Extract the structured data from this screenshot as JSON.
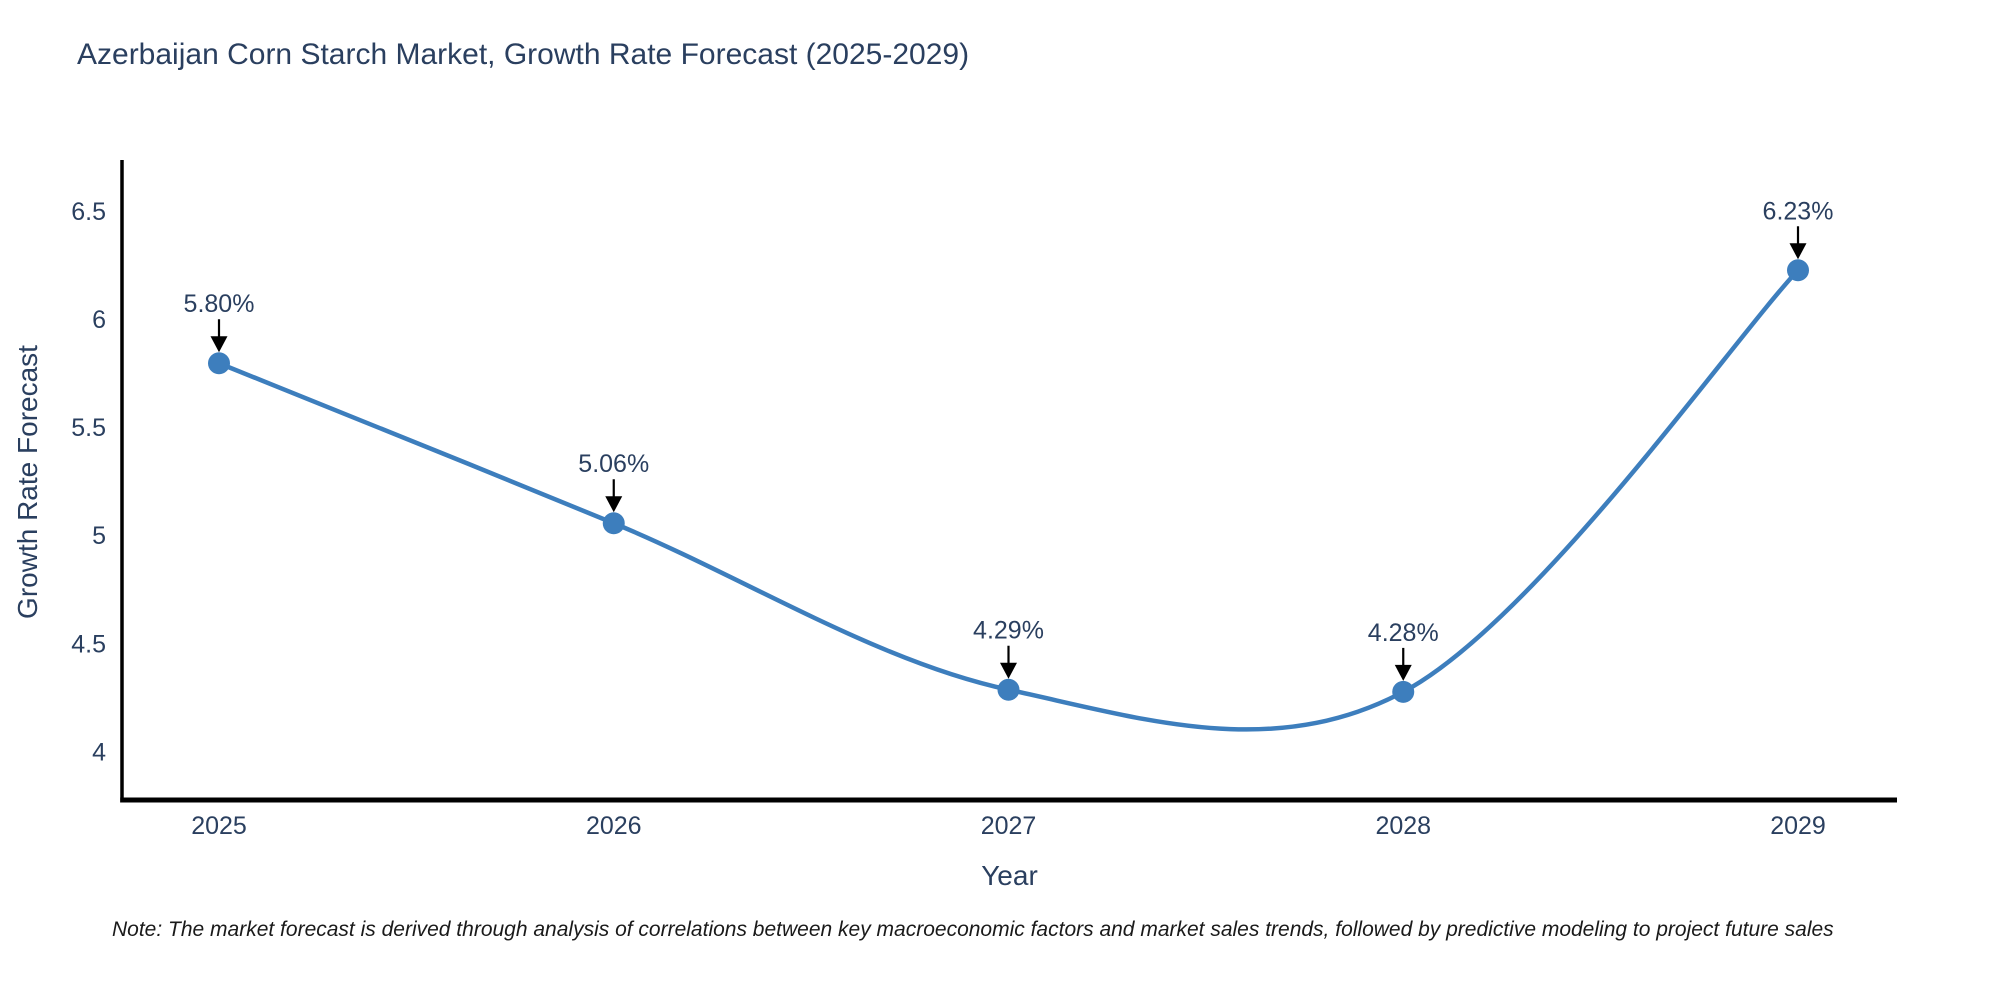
{
  "title": "Azerbaijan Corn Starch Market, Growth Rate Forecast (2025-2029)",
  "note": "Note: The market forecast is derived through analysis of correlations between key macroeconomic factors and market sales trends, followed by predictive modeling to project future sales",
  "chart_data": {
    "type": "line",
    "line_shape": "spline",
    "title": "Azerbaijan Corn Starch Market, Growth Rate Forecast (2025-2029)",
    "xlabel": "Year",
    "ylabel": "Growth Rate Forecast",
    "categories": [
      "2025",
      "2026",
      "2027",
      "2028",
      "2029"
    ],
    "series": [
      {
        "name": "Growth Rate Forecast",
        "values": [
          5.8,
          5.06,
          4.29,
          4.28,
          6.23
        ],
        "point_labels": [
          "5.80%",
          "5.06%",
          "4.29%",
          "4.28%",
          "6.23%"
        ]
      }
    ],
    "yticks": [
      4,
      4.5,
      5,
      5.5,
      6,
      6.5
    ],
    "ylim": [
      3.78,
      6.74
    ],
    "grid": false,
    "legend": false,
    "annotations_style": "value label with downward arrow to each marker",
    "colors": {
      "line": "#3d7ebd",
      "marker": "#3d7ebd",
      "arrow": "#000000",
      "axis_line": "#000000",
      "chart_text": "#2a3f5f",
      "note_text": "#1a1a1a",
      "background": "#ffffff"
    }
  }
}
